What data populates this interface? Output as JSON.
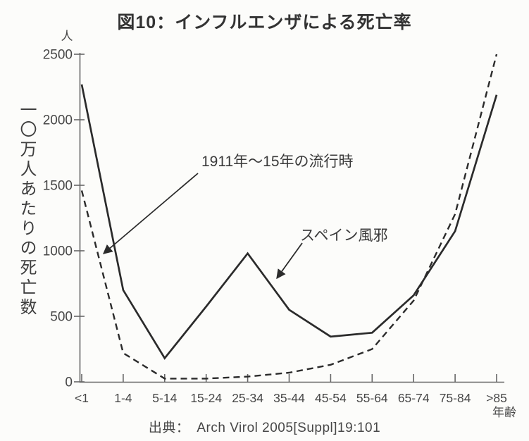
{
  "title": "図10：インフルエンザによる死亡率",
  "chart_data": {
    "type": "line",
    "title": "図10：インフルエンザによる死亡率",
    "categories": [
      "<1",
      "1-4",
      "5-14",
      "15-24",
      "25-34",
      "35-44",
      "45-54",
      "55-64",
      "65-74",
      "75-84",
      ">85"
    ],
    "series": [
      {
        "name": "1911年～15年の流行時",
        "style": "dashed",
        "values": [
          1460,
          220,
          25,
          25,
          40,
          70,
          130,
          250,
          620,
          1280,
          2500
        ]
      },
      {
        "name": "スペイン風邪",
        "style": "solid",
        "values": [
          2270,
          700,
          180,
          575,
          980,
          550,
          345,
          375,
          660,
          1150,
          2190
        ]
      }
    ],
    "xlabel": "年齢",
    "ylabel": "一〇万人あたりの死亡数",
    "y_unit": "人",
    "ylim": [
      0,
      2500
    ],
    "yticks": [
      0,
      500,
      1000,
      1500,
      2000,
      2500
    ],
    "grid": false,
    "legend_position": "inline-annotations",
    "line_color": "#2b2b2b",
    "axis_color": "#666666"
  },
  "source": {
    "prefix": "出典：",
    "citation": "Arch Virol 2005[Suppl]19:101"
  }
}
